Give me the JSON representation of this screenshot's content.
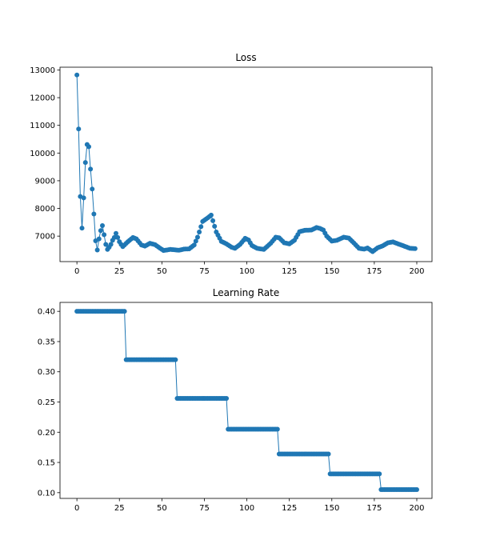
{
  "chart_data": [
    {
      "type": "line",
      "title": "Loss",
      "xlabel": "",
      "ylabel": "",
      "xlim": [
        -9.95,
        208.95
      ],
      "ylim": [
        6080,
        13100
      ],
      "xticks": [
        0,
        25,
        50,
        75,
        100,
        125,
        150,
        175,
        200
      ],
      "yticks": [
        7000,
        8000,
        9000,
        10000,
        11000,
        12000,
        13000
      ],
      "color": "#1f77b4",
      "marker": "circle",
      "anchors": [
        [
          0,
          12820
        ],
        [
          1,
          10870
        ],
        [
          2,
          8430
        ],
        [
          3,
          7290
        ],
        [
          4,
          8380
        ],
        [
          5,
          9660
        ],
        [
          6,
          10310
        ],
        [
          7,
          10230
        ],
        [
          8,
          9420
        ],
        [
          9,
          8700
        ],
        [
          10,
          7800
        ],
        [
          11,
          6830
        ],
        [
          12,
          6500
        ],
        [
          13,
          6900
        ],
        [
          14,
          7200
        ],
        [
          15,
          7380
        ],
        [
          16,
          7050
        ],
        [
          17,
          6700
        ],
        [
          18,
          6520
        ],
        [
          19,
          6600
        ],
        [
          20,
          6700
        ],
        [
          21,
          6850
        ],
        [
          22,
          6950
        ],
        [
          23,
          7100
        ],
        [
          24,
          6950
        ],
        [
          25,
          6800
        ],
        [
          26,
          6700
        ],
        [
          27,
          6620
        ],
        [
          30,
          6800
        ],
        [
          33,
          6950
        ],
        [
          35,
          6900
        ],
        [
          38,
          6680
        ],
        [
          40,
          6640
        ],
        [
          43,
          6740
        ],
        [
          46,
          6690
        ],
        [
          49,
          6560
        ],
        [
          51,
          6480
        ],
        [
          55,
          6520
        ],
        [
          60,
          6490
        ],
        [
          63,
          6530
        ],
        [
          66,
          6540
        ],
        [
          69,
          6680
        ],
        [
          71,
          6960
        ],
        [
          74,
          7530
        ],
        [
          77,
          7660
        ],
        [
          79,
          7760
        ],
        [
          82,
          7150
        ],
        [
          85,
          6810
        ],
        [
          88,
          6720
        ],
        [
          91,
          6600
        ],
        [
          93,
          6560
        ],
        [
          96,
          6700
        ],
        [
          99,
          6920
        ],
        [
          101,
          6860
        ],
        [
          103,
          6660
        ],
        [
          106,
          6560
        ],
        [
          110,
          6520
        ],
        [
          114,
          6740
        ],
        [
          117,
          6960
        ],
        [
          119,
          6940
        ],
        [
          122,
          6760
        ],
        [
          125,
          6720
        ],
        [
          128,
          6850
        ],
        [
          131,
          7160
        ],
        [
          134,
          7210
        ],
        [
          138,
          7220
        ],
        [
          141,
          7310
        ],
        [
          143,
          7280
        ],
        [
          145,
          7220
        ],
        [
          147,
          7000
        ],
        [
          150,
          6820
        ],
        [
          153,
          6850
        ],
        [
          157,
          6960
        ],
        [
          160,
          6930
        ],
        [
          163,
          6750
        ],
        [
          166,
          6560
        ],
        [
          169,
          6530
        ],
        [
          171,
          6570
        ],
        [
          174,
          6440
        ],
        [
          177,
          6580
        ],
        [
          180,
          6650
        ],
        [
          183,
          6760
        ],
        [
          186,
          6790
        ],
        [
          189,
          6720
        ],
        [
          193,
          6630
        ],
        [
          196,
          6560
        ],
        [
          199,
          6550
        ]
      ]
    },
    {
      "type": "line",
      "title": "Learning Rate",
      "xlabel": "",
      "ylabel": "",
      "xlim": [
        -9.95,
        208.95
      ],
      "ylim": [
        0.0905,
        0.4148
      ],
      "xticks": [
        0,
        25,
        50,
        75,
        100,
        125,
        150,
        175,
        200
      ],
      "yticks": [
        0.1,
        0.15,
        0.2,
        0.25,
        0.3,
        0.35,
        0.4
      ],
      "color": "#1f77b4",
      "marker": "circle",
      "steps": [
        {
          "from": 0,
          "to": 29,
          "value": 0.4
        },
        {
          "from": 29,
          "to": 59,
          "value": 0.32
        },
        {
          "from": 59,
          "to": 89,
          "value": 0.256
        },
        {
          "from": 89,
          "to": 119,
          "value": 0.205
        },
        {
          "from": 119,
          "to": 149,
          "value": 0.164
        },
        {
          "from": 149,
          "to": 179,
          "value": 0.131
        },
        {
          "from": 179,
          "to": 200,
          "value": 0.105
        }
      ]
    }
  ]
}
